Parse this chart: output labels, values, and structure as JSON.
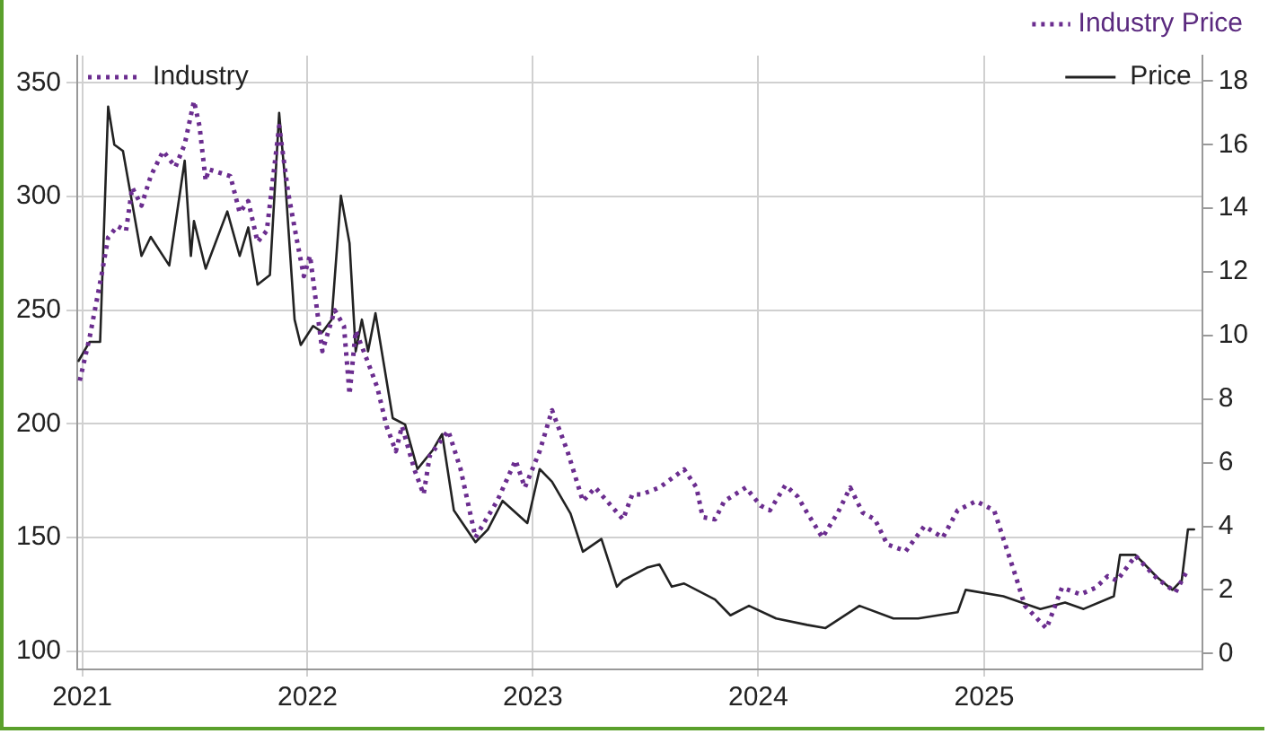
{
  "chart_data": {
    "type": "line",
    "ylabel": "Industry",
    "legend": "top right",
    "grid": true,
    "marker": "none",
    "xlim": [
      "2020-12-24",
      "2025-12-20"
    ],
    "xticks": [
      "2021",
      "2022",
      "2023",
      "2024",
      "2025"
    ],
    "ylim": [
      92,
      362
    ],
    "yticks": [
      100,
      150,
      200,
      250,
      300,
      350
    ],
    "y2lim": [
      -0.5,
      18.8
    ],
    "y2ticks": [
      0,
      2,
      4,
      6,
      8,
      10,
      12,
      14,
      16,
      18
    ],
    "series": [
      {
        "name": "Industry Price",
        "color": "#6b2d8f",
        "line_style": "dotted",
        "axis": "y",
        "x": [
          "2020-12-28",
          "2021-01-13",
          "2021-02-01",
          "2021-02-12",
          "2021-02-27",
          "2021-03-13",
          "2021-03-23",
          "2021-04-07",
          "2021-04-22",
          "2021-05-12",
          "2021-06-01",
          "2021-06-16",
          "2021-07-01",
          "2021-07-10",
          "2021-07-20",
          "2021-07-25",
          "2021-08-29",
          "2021-09-13",
          "2021-09-27",
          "2021-10-12",
          "2021-10-27",
          "2021-11-16",
          "2021-12-01",
          "2021-12-16",
          "2021-12-26",
          "2022-01-05",
          "2022-01-25",
          "2022-02-14",
          "2022-03-01",
          "2022-03-10",
          "2022-03-20",
          "2022-04-09",
          "2022-04-24",
          "2022-05-09",
          "2022-05-24",
          "2022-06-03",
          "2022-06-23",
          "2022-07-08",
          "2022-07-18",
          "2022-08-17",
          "2022-09-06",
          "2022-09-30",
          "2022-10-15",
          "2022-11-04",
          "2022-12-04",
          "2022-12-19",
          "2023-01-12",
          "2023-02-01",
          "2023-02-26",
          "2023-03-23",
          "2023-04-12",
          "2023-05-27",
          "2023-06-11",
          "2023-06-26",
          "2023-07-25",
          "2023-09-03",
          "2023-09-23",
          "2023-10-03",
          "2023-10-23",
          "2023-11-07",
          "2023-12-12",
          "2024-01-05",
          "2024-01-20",
          "2024-02-14",
          "2024-03-05",
          "2024-03-20",
          "2024-04-14",
          "2024-05-09",
          "2024-05-29",
          "2024-06-18",
          "2024-07-08",
          "2024-07-28",
          "2024-08-27",
          "2024-09-26",
          "2024-10-26",
          "2024-11-19",
          "2024-12-19",
          "2025-01-17",
          "2025-02-21",
          "2025-03-08",
          "2025-04-12",
          "2025-05-07",
          "2025-06-06",
          "2025-07-01",
          "2025-07-20",
          "2025-08-04",
          "2025-09-03",
          "2025-10-08",
          "2025-11-07",
          "2025-11-27"
        ],
        "values": [
          219,
          238,
          265,
          282,
          287,
          285,
          304,
          296,
          309,
          320,
          313,
          323,
          342,
          331,
          307,
          312,
          309,
          293,
          298,
          280,
          285,
          331,
          301,
          279,
          265,
          274,
          232,
          250,
          243,
          213,
          241,
          227,
          216,
          199,
          188,
          199,
          180,
          169,
          186,
          197,
          180,
          150,
          157,
          166,
          184,
          172,
          188,
          206,
          188,
          166,
          172,
          158,
          169,
          169,
          172,
          180,
          172,
          159,
          158,
          166,
          172,
          164,
          162,
          173,
          168,
          161,
          150,
          161,
          172,
          161,
          158,
          147,
          144,
          155,
          150,
          162,
          166,
          162,
          133,
          120,
          110,
          128,
          125,
          128,
          133,
          131,
          142,
          132,
          126,
          136
        ]
      },
      {
        "name": "Price",
        "color": "#222222",
        "line_style": "solid",
        "axis": "y2",
        "x": [
          "2020-12-26",
          "2021-01-13",
          "2021-01-30",
          "2021-02-12",
          "2021-02-22",
          "2021-03-08",
          "2021-04-07",
          "2021-04-22",
          "2021-05-22",
          "2021-06-16",
          "2021-06-26",
          "2021-07-01",
          "2021-07-20",
          "2021-08-24",
          "2021-09-13",
          "2021-09-27",
          "2021-10-12",
          "2021-11-01",
          "2021-11-16",
          "2021-11-26",
          "2021-12-11",
          "2021-12-21",
          "2022-01-10",
          "2022-01-25",
          "2022-02-09",
          "2022-02-24",
          "2022-03-10",
          "2022-03-20",
          "2022-03-30",
          "2022-04-09",
          "2022-04-21",
          "2022-05-19",
          "2022-06-08",
          "2022-06-28",
          "2022-07-23",
          "2022-08-07",
          "2022-08-26",
          "2022-09-30",
          "2022-10-20",
          "2022-11-13",
          "2022-12-23",
          "2023-01-12",
          "2023-02-01",
          "2023-03-03",
          "2023-03-23",
          "2023-04-22",
          "2023-05-17",
          "2023-05-27",
          "2023-07-05",
          "2023-07-25",
          "2023-08-14",
          "2023-09-03",
          "2023-10-23",
          "2023-11-17",
          "2023-12-17",
          "2024-01-30",
          "2024-03-20",
          "2024-04-19",
          "2024-06-13",
          "2024-08-07",
          "2024-09-16",
          "2024-11-19",
          "2024-12-02",
          "2025-02-01",
          "2025-04-02",
          "2025-05-12",
          "2025-06-11",
          "2025-07-30",
          "2025-08-09",
          "2025-09-03",
          "2025-10-08",
          "2025-11-02",
          "2025-11-17",
          "2025-11-27",
          "2025-12-07"
        ],
        "values": [
          9.2,
          9.8,
          9.8,
          17.2,
          16.0,
          15.8,
          12.5,
          13.1,
          12.2,
          15.5,
          12.5,
          13.6,
          12.1,
          13.9,
          12.5,
          13.4,
          11.6,
          11.9,
          17.0,
          14.8,
          10.5,
          9.7,
          10.3,
          10.1,
          10.5,
          14.4,
          12.9,
          9.5,
          10.5,
          9.5,
          10.7,
          7.4,
          7.2,
          5.8,
          6.4,
          6.9,
          4.5,
          3.5,
          3.9,
          4.8,
          4.1,
          5.8,
          5.4,
          4.4,
          3.2,
          3.6,
          2.1,
          2.3,
          2.7,
          2.8,
          2.1,
          2.2,
          1.7,
          1.2,
          1.5,
          1.1,
          0.9,
          0.8,
          1.5,
          1.1,
          1.1,
          1.3,
          2.0,
          1.8,
          1.4,
          1.6,
          1.4,
          1.8,
          3.1,
          3.1,
          2.4,
          2.0,
          2.3,
          3.9,
          3.9
        ]
      }
    ]
  }
}
